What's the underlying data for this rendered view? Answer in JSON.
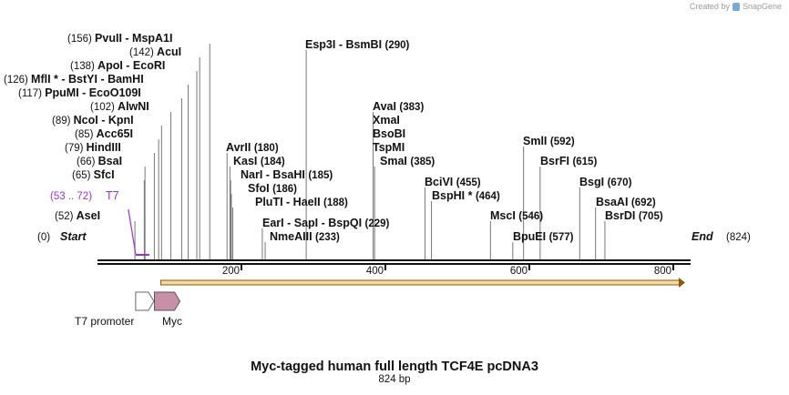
{
  "credit": {
    "prefix": "Created by",
    "brand": "SnapGene",
    "icon": "snapgene-logo-icon"
  },
  "plasmid": {
    "name": "Myc-tagged human full length TCF4E pcDNA3",
    "length_label": "824 bp",
    "length_bp": 824
  },
  "sequence_start_label": "Start",
  "sequence_start_pos": "(0)",
  "sequence_end_label": "End",
  "sequence_end_pos": "(824)",
  "ruler_ticks": [
    200,
    400,
    600,
    800
  ],
  "enzymes": [
    {
      "pos": 156,
      "pos_label": "(156)",
      "names": [
        "PvuII",
        "MspA1I"
      ],
      "star": false
    },
    {
      "pos": 142,
      "pos_label": "(142)",
      "names": [
        "AcuI"
      ],
      "star": false
    },
    {
      "pos": 138,
      "pos_label": "(138)",
      "names": [
        "ApoI",
        "EcoRI"
      ],
      "star": false
    },
    {
      "pos": 126,
      "pos_label": "(126)",
      "names": [
        "MflI",
        "BstYI",
        "BamHI"
      ],
      "star": true
    },
    {
      "pos": 117,
      "pos_label": "(117)",
      "names": [
        "PpuMI",
        "EcoO109I"
      ],
      "star": false
    },
    {
      "pos": 102,
      "pos_label": "(102)",
      "names": [
        "AlwNI"
      ],
      "star": false
    },
    {
      "pos": 89,
      "pos_label": "(89)",
      "names": [
        "NcoI",
        "KpnI"
      ],
      "star": false
    },
    {
      "pos": 85,
      "pos_label": "(85)",
      "names": [
        "Acc65I"
      ],
      "star": false
    },
    {
      "pos": 79,
      "pos_label": "(79)",
      "names": [
        "HindIII"
      ],
      "star": false
    },
    {
      "pos": 66,
      "pos_label": "(66)",
      "names": [
        "BsaI"
      ],
      "star": false
    },
    {
      "pos": 65,
      "pos_label": "(65)",
      "names": [
        "SfcI"
      ],
      "star": false
    },
    {
      "pos": 52,
      "pos_label": "(52)",
      "names": [
        "AseI"
      ],
      "star": false
    },
    {
      "pos": 180,
      "pos_label": "(180)",
      "names": [
        "AvrII"
      ],
      "star": false
    },
    {
      "pos": 184,
      "pos_label": "(184)",
      "names": [
        "KasI"
      ],
      "star": false
    },
    {
      "pos": 185,
      "pos_label": "(185)",
      "names": [
        "NarI",
        "BsaHI"
      ],
      "star": false
    },
    {
      "pos": 186,
      "pos_label": "(186)",
      "names": [
        "SfoI"
      ],
      "star": false
    },
    {
      "pos": 188,
      "pos_label": "(188)",
      "names": [
        "PluTI",
        "HaeII"
      ],
      "star": false
    },
    {
      "pos": 229,
      "pos_label": "(229)",
      "names": [
        "EarI",
        "SapI",
        "BspQI"
      ],
      "star": false
    },
    {
      "pos": 233,
      "pos_label": "(233)",
      "names": [
        "NmeAIII"
      ],
      "star": false
    },
    {
      "pos": 290,
      "pos_label": "(290)",
      "names": [
        "Esp3I",
        "BsmBI"
      ],
      "star": false
    },
    {
      "pos": 383,
      "pos_label": "(383)",
      "names": [
        "AvaI"
      ],
      "star": false
    },
    {
      "pos": 383,
      "pos_label": "",
      "names": [
        "XmaI"
      ],
      "star": false
    },
    {
      "pos": 383,
      "pos_label": "",
      "names": [
        "BsoBI"
      ],
      "star": false
    },
    {
      "pos": 383,
      "pos_label": "",
      "names": [
        "TspMI"
      ],
      "star": false
    },
    {
      "pos": 385,
      "pos_label": "(385)",
      "names": [
        "SmaI"
      ],
      "star": false
    },
    {
      "pos": 455,
      "pos_label": "(455)",
      "names": [
        "BciVI"
      ],
      "star": false
    },
    {
      "pos": 464,
      "pos_label": "(464)",
      "names": [
        "BspHI"
      ],
      "star": true
    },
    {
      "pos": 546,
      "pos_label": "(546)",
      "names": [
        "MscI"
      ],
      "star": false
    },
    {
      "pos": 577,
      "pos_label": "(577)",
      "names": [
        "BpuEI"
      ],
      "star": false
    },
    {
      "pos": 592,
      "pos_label": "(592)",
      "names": [
        "SmlI"
      ],
      "star": false
    },
    {
      "pos": 615,
      "pos_label": "(615)",
      "names": [
        "BsrFI"
      ],
      "star": false
    },
    {
      "pos": 670,
      "pos_label": "(670)",
      "names": [
        "BsgI"
      ],
      "star": false
    },
    {
      "pos": 692,
      "pos_label": "(692)",
      "names": [
        "BsaAI"
      ],
      "star": false
    },
    {
      "pos": 705,
      "pos_label": "(705)",
      "names": [
        "BsrDI"
      ],
      "star": false
    }
  ],
  "primer": {
    "name": "T7",
    "range_label": "(53 .. 72)",
    "start": 53,
    "end": 72,
    "color": "#9b30d9"
  },
  "orf": {
    "start": 88,
    "end": 824,
    "fill": "#f5d9a8",
    "stroke": "#8a5a00"
  },
  "features": [
    {
      "name": "T7 promoter",
      "start": 53,
      "end": 71,
      "fill": "#ffffff",
      "stroke": "#666666"
    },
    {
      "name": "Myc",
      "start": 88,
      "end": 118,
      "fill": "#c890a8",
      "stroke": "#555555"
    }
  ]
}
